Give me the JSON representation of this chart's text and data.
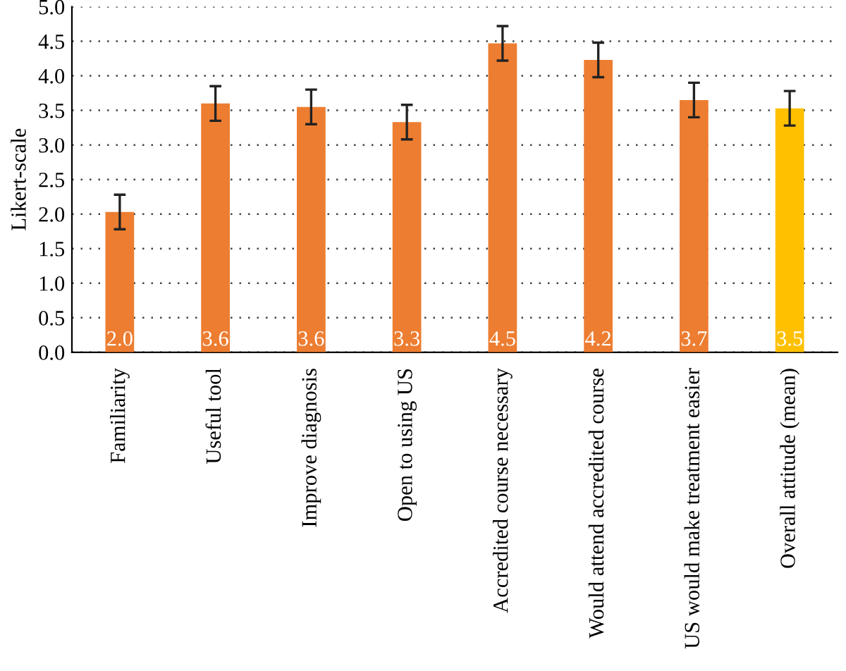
{
  "chart_data": {
    "type": "bar",
    "ylabel": "Likert-scale",
    "categories": [
      "Familiarity",
      "Useful tool",
      "Improve diagnosis",
      "Open to using US",
      "Accredited course necessary",
      "Would attend accredited course",
      "US would make treatment easier",
      "Overall attitude (mean)"
    ],
    "values": [
      2.03,
      3.6,
      3.55,
      3.33,
      4.47,
      4.23,
      3.65,
      3.53
    ],
    "errors": [
      0.25,
      0.25,
      0.25,
      0.25,
      0.25,
      0.25,
      0.25,
      0.25
    ],
    "value_labels": [
      "2.0",
      "3.6",
      "3.6",
      "3.3",
      "4.5",
      "4.2",
      "3.7",
      "3.5"
    ],
    "colors": [
      "#ed7d31",
      "#ed7d31",
      "#ed7d31",
      "#ed7d31",
      "#ed7d31",
      "#ed7d31",
      "#ed7d31",
      "#ffc000"
    ],
    "ylim": [
      0,
      5
    ],
    "yticks": [
      {
        "value": 0,
        "label": "0.0"
      },
      {
        "value": 0.5,
        "label": "0.5"
      },
      {
        "value": 1,
        "label": "1.0"
      },
      {
        "value": 1.5,
        "label": "1.5"
      },
      {
        "value": 2,
        "label": "2.0"
      },
      {
        "value": 2.5,
        "label": "2.5"
      },
      {
        "value": 3,
        "label": "3.0"
      },
      {
        "value": 3.5,
        "label": "3.5"
      },
      {
        "value": 4,
        "label": "4.0"
      },
      {
        "value": 4.5,
        "label": "4.5"
      },
      {
        "value": 5,
        "label": "5.0"
      }
    ],
    "grid": "y"
  }
}
